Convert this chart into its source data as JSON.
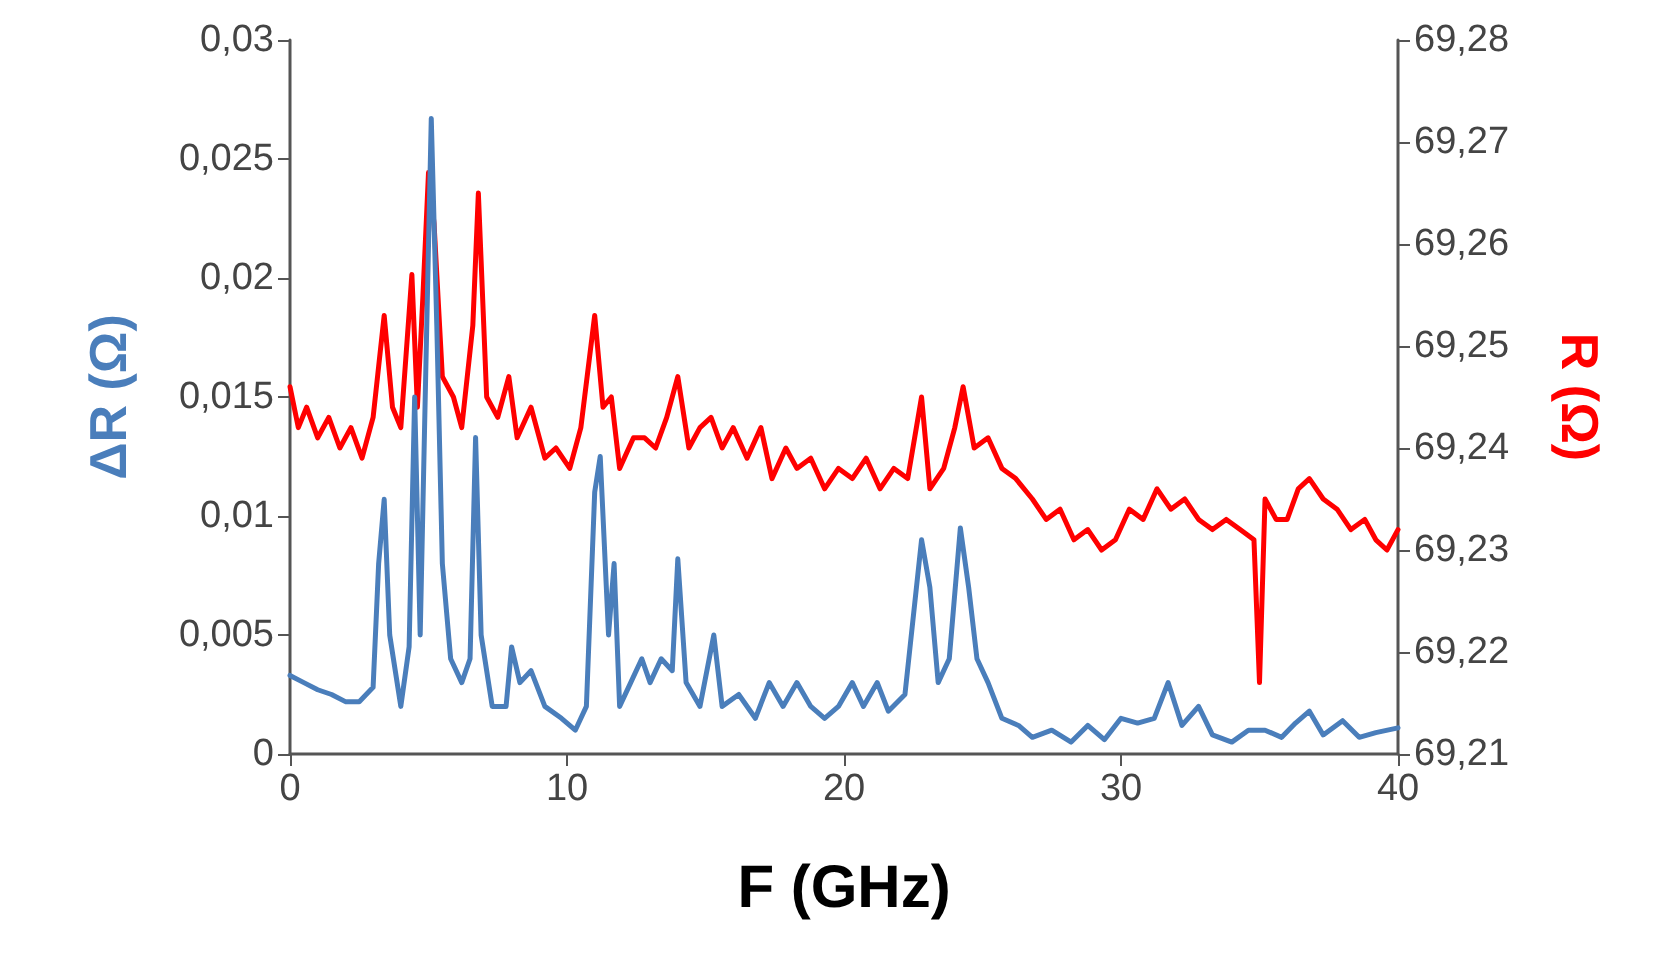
{
  "chart_data": {
    "type": "line",
    "xlabel": "F (GHz)",
    "ylabel": "ΔR (Ω)",
    "y2label": "R (Ω)",
    "xlim": [
      0,
      40
    ],
    "xticks": [
      0,
      10,
      20,
      30,
      40
    ],
    "ylim": [
      0,
      0.03
    ],
    "yticks": [
      {
        "value": 0,
        "label": "0"
      },
      {
        "value": 0.005,
        "label": "0,005"
      },
      {
        "value": 0.01,
        "label": "0,01"
      },
      {
        "value": 0.015,
        "label": "0,015"
      },
      {
        "value": 0.02,
        "label": "0,02"
      },
      {
        "value": 0.025,
        "label": "0,025"
      },
      {
        "value": 0.03,
        "label": "0,03"
      }
    ],
    "y2lim": [
      69.21,
      69.28
    ],
    "y2ticks": [
      {
        "value": 69.21,
        "label": "69,21"
      },
      {
        "value": 69.22,
        "label": "69,22"
      },
      {
        "value": 69.23,
        "label": "69,23"
      },
      {
        "value": 69.24,
        "label": "69,24"
      },
      {
        "value": 69.25,
        "label": "69,25"
      },
      {
        "value": 69.26,
        "label": "69,26"
      },
      {
        "value": 69.27,
        "label": "69,27"
      },
      {
        "value": 69.28,
        "label": "69,28"
      }
    ],
    "marker": "none",
    "line_style": "solid",
    "series": [
      {
        "color": "#ff0000",
        "axis": "y2",
        "x": [
          0,
          0.3,
          0.6,
          1,
          1.4,
          1.8,
          2.2,
          2.6,
          3,
          3.2,
          3.4,
          3.7,
          4,
          4.4,
          4.6,
          4.8,
          5,
          5.2,
          5.5,
          5.9,
          6.2,
          6.6,
          6.8,
          7.1,
          7.5,
          7.9,
          8.2,
          8.7,
          9.2,
          9.6,
          10.1,
          10.5,
          11,
          11.3,
          11.6,
          11.9,
          12.4,
          12.8,
          13.2,
          13.6,
          14,
          14.4,
          14.8,
          15.2,
          15.6,
          16,
          16.5,
          17,
          17.4,
          17.9,
          18.3,
          18.8,
          19.3,
          19.8,
          20.3,
          20.8,
          21.3,
          21.8,
          22.3,
          22.8,
          23.1,
          23.6,
          24,
          24.3,
          24.7,
          25.2,
          25.7,
          26.2,
          26.8,
          27.3,
          27.8,
          28.3,
          28.8,
          29.3,
          29.8,
          30.3,
          30.8,
          31.3,
          31.8,
          32.3,
          32.8,
          33.3,
          33.8,
          34.3,
          34.8,
          35,
          35.2,
          35.6,
          36,
          36.4,
          36.8,
          37.3,
          37.8,
          38.3,
          38.8,
          39.2,
          39.6,
          40
        ],
        "values": [
          69.246,
          69.242,
          69.244,
          69.241,
          69.243,
          69.24,
          69.242,
          69.239,
          69.243,
          69.248,
          69.253,
          69.244,
          69.242,
          69.257,
          69.244,
          69.255,
          69.267,
          69.262,
          69.247,
          69.245,
          69.242,
          69.252,
          69.265,
          69.245,
          69.243,
          69.247,
          69.241,
          69.244,
          69.239,
          69.24,
          69.238,
          69.242,
          69.253,
          69.244,
          69.245,
          69.238,
          69.241,
          69.241,
          69.24,
          69.243,
          69.247,
          69.24,
          69.242,
          69.243,
          69.24,
          69.242,
          69.239,
          69.242,
          69.237,
          69.24,
          69.238,
          69.239,
          69.236,
          69.238,
          69.237,
          69.239,
          69.236,
          69.238,
          69.237,
          69.245,
          69.236,
          69.238,
          69.242,
          69.246,
          69.24,
          69.241,
          69.238,
          69.237,
          69.235,
          69.233,
          69.234,
          69.231,
          69.232,
          69.23,
          69.231,
          69.234,
          69.233,
          69.236,
          69.234,
          69.235,
          69.233,
          69.232,
          69.233,
          69.232,
          69.231,
          69.217,
          69.235,
          69.233,
          69.233,
          69.236,
          69.237,
          69.235,
          69.234,
          69.232,
          69.233,
          69.231,
          69.23,
          69.232
        ]
      },
      {
        "color": "#4a7ebb",
        "x": [
          0,
          0.5,
          1,
          1.5,
          2,
          2.5,
          3,
          3.2,
          3.4,
          3.6,
          4,
          4.3,
          4.5,
          4.7,
          4.9,
          5.1,
          5.3,
          5.5,
          5.8,
          6.2,
          6.5,
          6.7,
          6.9,
          7.3,
          7.8,
          8,
          8.3,
          8.7,
          9.2,
          9.8,
          10.3,
          10.7,
          11,
          11.2,
          11.5,
          11.7,
          11.9,
          12.3,
          12.7,
          13,
          13.4,
          13.8,
          14,
          14.3,
          14.8,
          15.3,
          15.6,
          16.2,
          16.8,
          17.3,
          17.8,
          18.3,
          18.8,
          19.3,
          19.8,
          20.3,
          20.7,
          21.2,
          21.6,
          22.2,
          22.8,
          23.1,
          23.4,
          23.8,
          24.2,
          24.5,
          24.8,
          25.2,
          25.7,
          26.3,
          26.8,
          27.5,
          28.2,
          28.8,
          29.4,
          30,
          30.6,
          31.2,
          31.7,
          32.2,
          32.8,
          33.3,
          34,
          34.6,
          35.2,
          35.8,
          36.3,
          36.8,
          37.3,
          38,
          38.6,
          39.2,
          40
        ],
        "values": [
          0.0033,
          0.003,
          0.0027,
          0.0025,
          0.0022,
          0.0022,
          0.0028,
          0.008,
          0.0107,
          0.005,
          0.002,
          0.0045,
          0.015,
          0.005,
          0.016,
          0.0267,
          0.018,
          0.008,
          0.004,
          0.003,
          0.004,
          0.0133,
          0.005,
          0.002,
          0.002,
          0.0045,
          0.003,
          0.0035,
          0.002,
          0.0015,
          0.001,
          0.002,
          0.011,
          0.0125,
          0.005,
          0.008,
          0.002,
          0.003,
          0.004,
          0.003,
          0.004,
          0.0035,
          0.0082,
          0.003,
          0.002,
          0.005,
          0.002,
          0.0025,
          0.0015,
          0.003,
          0.002,
          0.003,
          0.002,
          0.0015,
          0.002,
          0.003,
          0.002,
          0.003,
          0.0018,
          0.0025,
          0.009,
          0.007,
          0.003,
          0.004,
          0.0095,
          0.007,
          0.004,
          0.003,
          0.0015,
          0.0012,
          0.0007,
          0.001,
          0.0005,
          0.0012,
          0.0006,
          0.0015,
          0.0013,
          0.0015,
          0.003,
          0.0012,
          0.002,
          0.0008,
          0.0005,
          0.001,
          0.001,
          0.0007,
          0.0013,
          0.0018,
          0.0008,
          0.0014,
          0.0007,
          0.0009,
          0.0011
        ]
      }
    ]
  }
}
